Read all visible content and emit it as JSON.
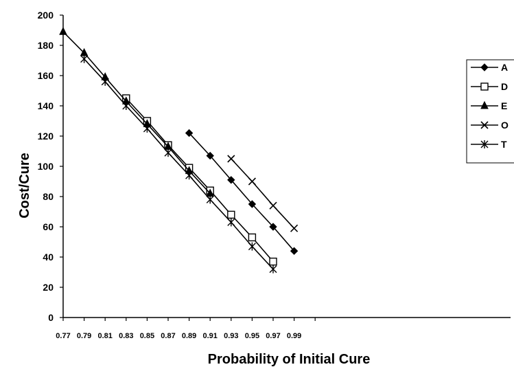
{
  "chart_data": {
    "type": "line",
    "title": "",
    "xlabel": "Probability of Initial Cure",
    "ylabel": "Cost/Cure",
    "xlim": [
      0.77,
      1.0
    ],
    "ylim": [
      0,
      200
    ],
    "yticks": [
      0,
      20,
      40,
      60,
      80,
      100,
      120,
      140,
      160,
      180,
      200
    ],
    "xticks": [
      "0.77",
      "0.79",
      "0.81",
      "0.83",
      "0.85",
      "0.87",
      "0.89",
      "0.91",
      "0.93",
      "0.95",
      "0.97",
      "0.99"
    ],
    "grid": false,
    "legend_position": "right",
    "series": [
      {
        "name": "A",
        "marker": "diamond-filled",
        "x": [
          0.89,
          0.91,
          0.93,
          0.95,
          0.97,
          0.99
        ],
        "y": [
          122,
          107,
          91,
          75,
          60,
          44
        ]
      },
      {
        "name": "D",
        "marker": "square-open",
        "x": [
          0.83,
          0.85,
          0.87,
          0.89,
          0.91,
          0.93,
          0.95,
          0.97
        ],
        "y": [
          145,
          130,
          114,
          99,
          84,
          68,
          53,
          37
        ]
      },
      {
        "name": "E",
        "marker": "triangle-filled",
        "x": [
          0.77,
          0.79,
          0.81,
          0.83,
          0.85,
          0.87,
          0.89,
          0.91
        ],
        "y": [
          189,
          175,
          159,
          143,
          128,
          113,
          97,
          82
        ]
      },
      {
        "name": "O",
        "marker": "x",
        "x": [
          0.93,
          0.95,
          0.97,
          0.99
        ],
        "y": [
          105,
          90,
          74,
          59
        ]
      },
      {
        "name": "T",
        "marker": "asterisk",
        "x": [
          0.79,
          0.81,
          0.83,
          0.85,
          0.87,
          0.89,
          0.91,
          0.93,
          0.95,
          0.97
        ],
        "y": [
          171,
          156,
          140,
          125,
          109,
          94,
          78,
          63,
          47,
          32
        ]
      }
    ]
  }
}
